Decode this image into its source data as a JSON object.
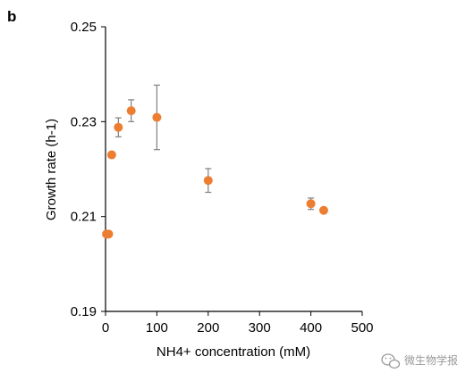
{
  "panel_label": "b",
  "watermark": {
    "text": "微生物学报",
    "icon": "wechat-icon"
  },
  "chart_data": {
    "type": "scatter",
    "xlabel": "NH4+ concentration (mM)",
    "ylabel": "Growth rate (h-1)",
    "xlim": [
      0,
      500
    ],
    "ylim": [
      0.19,
      0.25
    ],
    "xticks": [
      0,
      100,
      200,
      300,
      400,
      500
    ],
    "yticks": [
      0.19,
      0.21,
      0.23,
      0.25
    ],
    "ytick_labels": [
      "0.19",
      "0.21",
      "0.23",
      "0.25"
    ],
    "marker_color": "#ED7D31",
    "error_bar_color": "#808080",
    "grid": false,
    "points": [
      {
        "x": 2,
        "y": 0.2063,
        "err": 0.0003
      },
      {
        "x": 6,
        "y": 0.2063,
        "err": 0.0003
      },
      {
        "x": 12,
        "y": 0.223,
        "err": 0.0003
      },
      {
        "x": 25,
        "y": 0.2288,
        "err": 0.002
      },
      {
        "x": 50,
        "y": 0.2323,
        "err": 0.0023
      },
      {
        "x": 100,
        "y": 0.2309,
        "err": 0.0068
      },
      {
        "x": 200,
        "y": 0.2176,
        "err": 0.0025
      },
      {
        "x": 400,
        "y": 0.2127,
        "err": 0.0012
      },
      {
        "x": 425,
        "y": 0.2113,
        "err": 0.0003
      }
    ]
  }
}
